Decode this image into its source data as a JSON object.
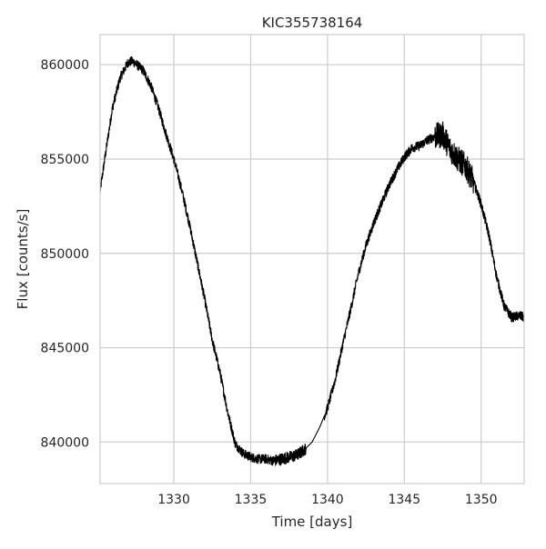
{
  "chart_data": {
    "type": "line",
    "title": "KIC355738164",
    "xlabel": "Time [days]",
    "ylabel": "Flux [counts/s]",
    "xlim": [
      1325.2,
      1352.8
    ],
    "ylim": [
      837800,
      861600
    ],
    "x_ticks": [
      1330,
      1335,
      1340,
      1345,
      1350
    ],
    "x_tick_labels": [
      "1330",
      "1335",
      "1340",
      "1345",
      "1350"
    ],
    "y_ticks": [
      840000,
      845000,
      850000,
      855000,
      860000
    ],
    "y_tick_labels": [
      "840000",
      "845000",
      "850000",
      "855000",
      "860000"
    ],
    "grid": true,
    "line_color": "#000000",
    "grid_color": "#cccccc",
    "series": [
      {
        "x": [
          1325.2,
          1325.5,
          1326.0,
          1326.5,
          1327.0,
          1327.3,
          1327.6,
          1328.0,
          1328.5,
          1329.0,
          1329.5,
          1330.0,
          1330.5,
          1331.0,
          1331.5,
          1332.0,
          1332.5,
          1333.0,
          1333.5,
          1334.0,
          1334.5,
          1335.0,
          1335.5,
          1336.0,
          1336.5,
          1337.0,
          1337.5,
          1338.0,
          1338.5,
          1339.0,
          1339.5,
          1340.0,
          1340.5,
          1341.0,
          1341.5,
          1342.0,
          1342.5,
          1343.0,
          1343.5,
          1344.0,
          1344.5,
          1345.0,
          1345.5,
          1346.0,
          1346.5,
          1347.0,
          1347.5,
          1348.0,
          1348.5,
          1349.0,
          1349.5,
          1350.0,
          1350.5,
          1351.0,
          1351.5,
          1352.0,
          1352.5,
          1352.8
        ],
        "y": [
          853300,
          855000,
          857700,
          859300,
          860100,
          860200,
          860000,
          859700,
          858900,
          857700,
          856300,
          855000,
          853400,
          851600,
          849600,
          847600,
          845400,
          843700,
          841600,
          839900,
          839400,
          839200,
          839100,
          839100,
          839000,
          839100,
          839200,
          839300,
          839600,
          840000,
          840800,
          841800,
          843300,
          845200,
          847000,
          848900,
          850400,
          851600,
          852600,
          853600,
          854400,
          855100,
          855600,
          855700,
          856000,
          856200,
          856300,
          855500,
          855000,
          854600,
          853800,
          852600,
          851000,
          848800,
          847200,
          846600,
          846700,
          846600
        ]
      }
    ]
  }
}
